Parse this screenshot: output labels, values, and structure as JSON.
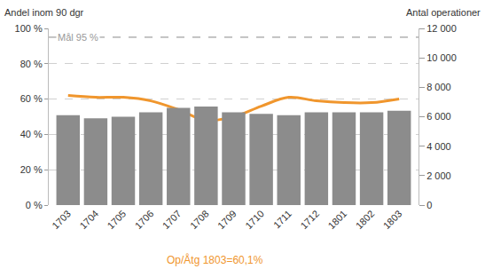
{
  "chart_data": {
    "type": "bar",
    "y_label": "Andel inom 90 dgr",
    "y2_label": "Antal operationer",
    "categories": [
      "1703",
      "1704",
      "1705",
      "1706",
      "1707",
      "1708",
      "1709",
      "1710",
      "1711",
      "1712",
      "1801",
      "1802",
      "1803"
    ],
    "series": [
      {
        "type": "bar",
        "axis": "y2",
        "color": "#8c8c8c",
        "values": [
          6100,
          5900,
          6000,
          6300,
          6600,
          6700,
          6300,
          6200,
          6100,
          6300,
          6300,
          6300,
          6400
        ]
      },
      {
        "type": "line",
        "color": "#f0962d",
        "values": [
          62,
          61,
          61,
          59,
          54,
          48,
          50,
          56,
          61,
          59,
          58,
          58,
          60.1
        ]
      }
    ],
    "ylim": [
      0,
      100
    ],
    "yticks": [
      {
        "value": 0,
        "label": "0 %"
      },
      {
        "value": 20,
        "label": "20 %"
      },
      {
        "value": 40,
        "label": "40 %"
      },
      {
        "value": 60,
        "label": "60 %"
      },
      {
        "value": 80,
        "label": "80 %"
      },
      {
        "value": 100,
        "label": "100 %"
      }
    ],
    "y2lim": [
      0,
      12000
    ],
    "y2ticks": [
      0,
      {
        "value": 2000,
        "label": "2 000"
      },
      {
        "value": 4000,
        "label": "4 000"
      },
      {
        "value": 6000,
        "label": "6 000"
      },
      {
        "value": 8000,
        "label": "8 000"
      },
      {
        "value": 10000,
        "label": "10 000"
      },
      {
        "value": 12000,
        "label": "12 000"
      }
    ],
    "target": {
      "value": 95,
      "label": "Mål 95 %"
    },
    "footnote": "Op/Åtg 1803=60,1%",
    "grid": true
  }
}
